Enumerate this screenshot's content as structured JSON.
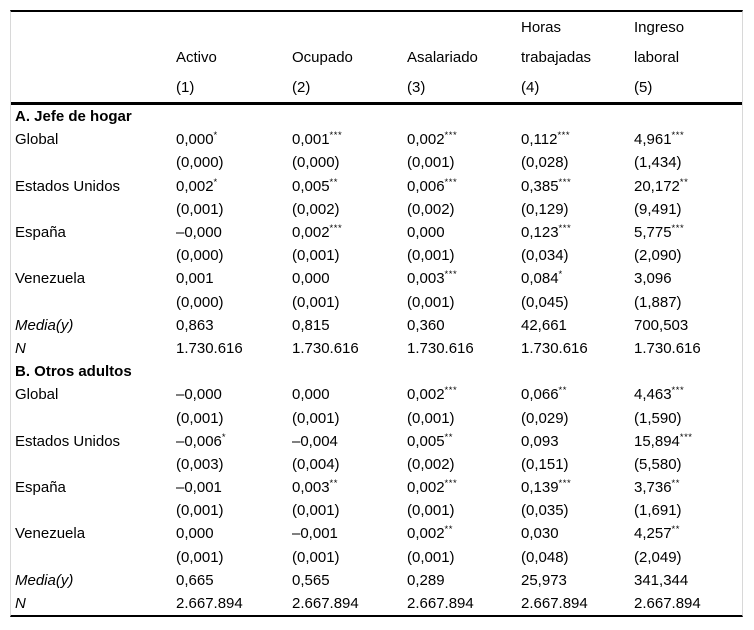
{
  "table": {
    "columns": [
      {
        "l1": "",
        "l2": "Activo",
        "l3": "(1)"
      },
      {
        "l1": "",
        "l2": "Ocupado",
        "l3": "(2)"
      },
      {
        "l1": "",
        "l2": "Asalariado",
        "l3": "(3)"
      },
      {
        "l1": "Horas",
        "l2": "trabajadas",
        "l3": "(4)"
      },
      {
        "l1": "Ingreso",
        "l2": "laboral",
        "l3": "(5)"
      }
    ],
    "sections": [
      {
        "title": "A. Jefe de hogar",
        "rows": [
          {
            "label": "Global",
            "italic": false,
            "values": [
              [
                "0,000",
                "*"
              ],
              [
                "0,001",
                "***"
              ],
              [
                "0,002",
                "***"
              ],
              [
                "0,112",
                "***"
              ],
              [
                "4,961",
                "***"
              ]
            ]
          },
          {
            "label": "",
            "italic": false,
            "values": [
              [
                "(0,000)",
                ""
              ],
              [
                "(0,000)",
                ""
              ],
              [
                "(0,001)",
                ""
              ],
              [
                "(0,028)",
                ""
              ],
              [
                "(1,434)",
                ""
              ]
            ]
          },
          {
            "label": "Estados Unidos",
            "italic": false,
            "values": [
              [
                "0,002",
                "*"
              ],
              [
                "0,005",
                "**"
              ],
              [
                "0,006",
                "***"
              ],
              [
                "0,385",
                "***"
              ],
              [
                "20,172",
                "**"
              ]
            ]
          },
          {
            "label": "",
            "italic": false,
            "values": [
              [
                "(0,001)",
                ""
              ],
              [
                "(0,002)",
                ""
              ],
              [
                "(0,002)",
                ""
              ],
              [
                "(0,129)",
                ""
              ],
              [
                "(9,491)",
                ""
              ]
            ]
          },
          {
            "label": "España",
            "italic": false,
            "values": [
              [
                "–0,000",
                ""
              ],
              [
                "0,002",
                "***"
              ],
              [
                "0,000",
                ""
              ],
              [
                "0,123",
                "***"
              ],
              [
                "5,775",
                "***"
              ]
            ]
          },
          {
            "label": "",
            "italic": false,
            "values": [
              [
                "(0,000)",
                ""
              ],
              [
                "(0,001)",
                ""
              ],
              [
                "(0,001)",
                ""
              ],
              [
                "(0,034)",
                ""
              ],
              [
                "(2,090)",
                ""
              ]
            ]
          },
          {
            "label": "Venezuela",
            "italic": false,
            "values": [
              [
                "0,001",
                ""
              ],
              [
                "0,000",
                ""
              ],
              [
                "0,003",
                "***"
              ],
              [
                "0,084",
                "*"
              ],
              [
                "3,096",
                ""
              ]
            ]
          },
          {
            "label": "",
            "italic": false,
            "values": [
              [
                "(0,000)",
                ""
              ],
              [
                "(0,001)",
                ""
              ],
              [
                "(0,001)",
                ""
              ],
              [
                "(0,045)",
                ""
              ],
              [
                "(1,887)",
                ""
              ]
            ]
          },
          {
            "label": "Media(y)",
            "italic": true,
            "values": [
              [
                "0,863",
                ""
              ],
              [
                "0,815",
                ""
              ],
              [
                "0,360",
                ""
              ],
              [
                "42,661",
                ""
              ],
              [
                "700,503",
                ""
              ]
            ]
          },
          {
            "label": "N",
            "italic": true,
            "values": [
              [
                "1.730.616",
                ""
              ],
              [
                "1.730.616",
                ""
              ],
              [
                "1.730.616",
                ""
              ],
              [
                "1.730.616",
                ""
              ],
              [
                "1.730.616",
                ""
              ]
            ]
          }
        ]
      },
      {
        "title": "B. Otros adultos",
        "rows": [
          {
            "label": "Global",
            "italic": false,
            "values": [
              [
                "–0,000",
                ""
              ],
              [
                "0,000",
                ""
              ],
              [
                "0,002",
                "***"
              ],
              [
                "0,066",
                "**"
              ],
              [
                "4,463",
                "***"
              ]
            ]
          },
          {
            "label": "",
            "italic": false,
            "values": [
              [
                "(0,001)",
                ""
              ],
              [
                "(0,001)",
                ""
              ],
              [
                "(0,001)",
                ""
              ],
              [
                "(0,029)",
                ""
              ],
              [
                "(1,590)",
                ""
              ]
            ]
          },
          {
            "label": "Estados Unidos",
            "italic": false,
            "values": [
              [
                "–0,006",
                "*"
              ],
              [
                "–0,004",
                ""
              ],
              [
                "0,005",
                "**"
              ],
              [
                "0,093",
                ""
              ],
              [
                "15,894",
                "***"
              ]
            ]
          },
          {
            "label": "",
            "italic": false,
            "values": [
              [
                "(0,003)",
                ""
              ],
              [
                "(0,004)",
                ""
              ],
              [
                "(0,002)",
                ""
              ],
              [
                "(0,151)",
                ""
              ],
              [
                "(5,580)",
                ""
              ]
            ]
          },
          {
            "label": "España",
            "italic": false,
            "values": [
              [
                "–0,001",
                ""
              ],
              [
                "0,003",
                "**"
              ],
              [
                "0,002",
                "***"
              ],
              [
                "0,139",
                "***"
              ],
              [
                "3,736",
                "**"
              ]
            ]
          },
          {
            "label": "",
            "italic": false,
            "values": [
              [
                "(0,001)",
                ""
              ],
              [
                "(0,001)",
                ""
              ],
              [
                "(0,001)",
                ""
              ],
              [
                "(0,035)",
                ""
              ],
              [
                "(1,691)",
                ""
              ]
            ]
          },
          {
            "label": "Venezuela",
            "italic": false,
            "values": [
              [
                "0,000",
                ""
              ],
              [
                "–0,001",
                ""
              ],
              [
                "0,002",
                "**"
              ],
              [
                "0,030",
                ""
              ],
              [
                "4,257",
                "**"
              ]
            ]
          },
          {
            "label": "",
            "italic": false,
            "values": [
              [
                "(0,001)",
                ""
              ],
              [
                "(0,001)",
                ""
              ],
              [
                "(0,001)",
                ""
              ],
              [
                "(0,048)",
                ""
              ],
              [
                "(2,049)",
                ""
              ]
            ]
          },
          {
            "label": "Media(y)",
            "italic": true,
            "values": [
              [
                "0,665",
                ""
              ],
              [
                "0,565",
                ""
              ],
              [
                "0,289",
                ""
              ],
              [
                "25,973",
                ""
              ],
              [
                "341,344",
                ""
              ]
            ]
          },
          {
            "label": "N",
            "italic": true,
            "values": [
              [
                "2.667.894",
                ""
              ],
              [
                "2.667.894",
                ""
              ],
              [
                "2.667.894",
                ""
              ],
              [
                "2.667.894",
                ""
              ],
              [
                "2.667.894",
                ""
              ]
            ]
          }
        ]
      }
    ]
  }
}
